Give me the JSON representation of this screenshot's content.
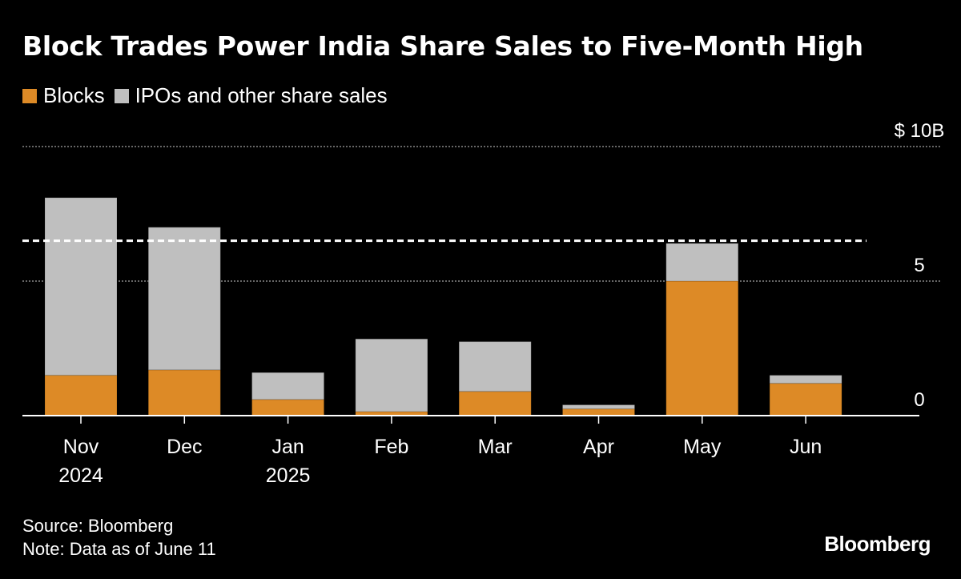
{
  "chart_data": {
    "type": "bar",
    "stacked": true,
    "title": "Block Trades Power India Share Sales to Five-Month High",
    "categories": [
      "Nov 2024",
      "Dec",
      "Jan 2025",
      "Feb",
      "Mar",
      "Apr",
      "May",
      "Jun"
    ],
    "category_lines": [
      [
        "Nov",
        "2024"
      ],
      [
        "Dec",
        ""
      ],
      [
        "Jan",
        "2025"
      ],
      [
        "Feb",
        ""
      ],
      [
        "Mar",
        ""
      ],
      [
        "Apr",
        ""
      ],
      [
        "May",
        ""
      ],
      [
        "Jun",
        ""
      ]
    ],
    "series": [
      {
        "name": "Blocks",
        "color": "#DD8A26",
        "values": [
          1.5,
          1.7,
          0.6,
          0.15,
          0.9,
          0.25,
          5.0,
          1.2
        ]
      },
      {
        "name": "IPOs and other share sales",
        "color": "#BFBFBF",
        "values": [
          6.6,
          5.3,
          1.0,
          2.7,
          1.85,
          0.15,
          1.4,
          0.3
        ]
      }
    ],
    "reference_line": {
      "value": 6.5,
      "style": "dashed"
    },
    "ylim": [
      0,
      10
    ],
    "yticks": [
      {
        "value": 10,
        "label": "$ 10B"
      },
      {
        "value": 5,
        "label": "5"
      },
      {
        "value": 0,
        "label": "0"
      }
    ],
    "grid": true,
    "legend_position": "top-left"
  },
  "footer": {
    "source": "Source: Bloomberg",
    "note": "Note: Data as of June 11",
    "logo": "Bloomberg"
  }
}
